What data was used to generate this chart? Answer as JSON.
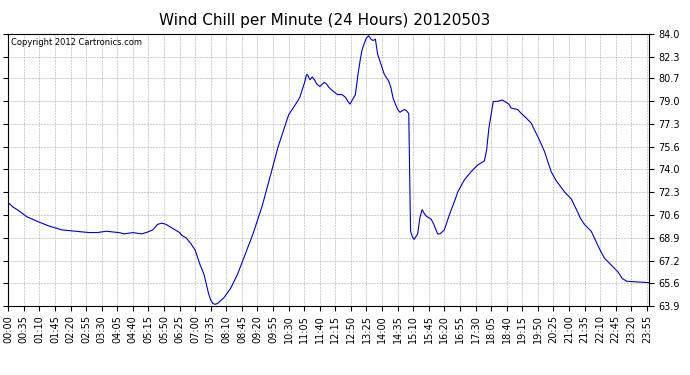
{
  "title": "Wind Chill per Minute (24 Hours) 20120503",
  "copyright_text": "Copyright 2012 Cartronics.com",
  "line_color": "#0000cc",
  "background_color": "#ffffff",
  "grid_color": "#aaaaaa",
  "ylim": [
    63.9,
    84.0
  ],
  "yticks": [
    63.9,
    65.6,
    67.2,
    68.9,
    70.6,
    72.3,
    74.0,
    75.6,
    77.3,
    79.0,
    80.7,
    82.3,
    84.0
  ],
  "title_fontsize": 11,
  "copyright_fontsize": 6,
  "tick_fontsize": 7,
  "x_tick_labels": [
    "00:00",
    "00:35",
    "01:10",
    "01:45",
    "02:20",
    "02:55",
    "03:30",
    "04:05",
    "04:40",
    "05:15",
    "05:50",
    "06:25",
    "07:00",
    "07:35",
    "08:10",
    "08:45",
    "09:20",
    "09:55",
    "10:30",
    "11:05",
    "11:40",
    "12:15",
    "12:50",
    "13:25",
    "14:00",
    "14:35",
    "15:10",
    "15:45",
    "16:20",
    "16:55",
    "17:30",
    "18:05",
    "18:40",
    "19:15",
    "19:50",
    "20:25",
    "21:00",
    "21:35",
    "22:10",
    "22:45",
    "23:20",
    "23:55"
  ],
  "key_points": [
    [
      0,
      71.5
    ],
    [
      10,
      71.2
    ],
    [
      20,
      71.0
    ],
    [
      40,
      70.5
    ],
    [
      60,
      70.2
    ],
    [
      90,
      69.8
    ],
    [
      120,
      69.5
    ],
    [
      150,
      69.4
    ],
    [
      180,
      69.3
    ],
    [
      200,
      69.3
    ],
    [
      220,
      69.4
    ],
    [
      250,
      69.3
    ],
    [
      260,
      69.2
    ],
    [
      280,
      69.3
    ],
    [
      300,
      69.2
    ],
    [
      310,
      69.3
    ],
    [
      325,
      69.5
    ],
    [
      335,
      69.9
    ],
    [
      345,
      70.0
    ],
    [
      355,
      69.9
    ],
    [
      365,
      69.7
    ],
    [
      375,
      69.5
    ],
    [
      385,
      69.3
    ],
    [
      390,
      69.1
    ],
    [
      400,
      68.9
    ],
    [
      410,
      68.5
    ],
    [
      420,
      68.0
    ],
    [
      430,
      67.0
    ],
    [
      440,
      66.2
    ],
    [
      445,
      65.5
    ],
    [
      450,
      64.8
    ],
    [
      455,
      64.3
    ],
    [
      460,
      64.05
    ],
    [
      465,
      64.0
    ],
    [
      470,
      64.05
    ],
    [
      485,
      64.5
    ],
    [
      500,
      65.2
    ],
    [
      515,
      66.2
    ],
    [
      530,
      67.5
    ],
    [
      550,
      69.2
    ],
    [
      570,
      71.2
    ],
    [
      585,
      73.0
    ],
    [
      605,
      75.5
    ],
    [
      630,
      78.0
    ],
    [
      650,
      79.0
    ],
    [
      655,
      79.3
    ],
    [
      660,
      79.8
    ],
    [
      665,
      80.3
    ],
    [
      668,
      80.7
    ],
    [
      670,
      80.95
    ],
    [
      672,
      81.0
    ],
    [
      675,
      80.8
    ],
    [
      678,
      80.6
    ],
    [
      683,
      80.8
    ],
    [
      688,
      80.6
    ],
    [
      693,
      80.3
    ],
    [
      700,
      80.1
    ],
    [
      710,
      80.4
    ],
    [
      715,
      80.3
    ],
    [
      720,
      80.05
    ],
    [
      728,
      79.8
    ],
    [
      740,
      79.5
    ],
    [
      750,
      79.5
    ],
    [
      758,
      79.3
    ],
    [
      763,
      79.0
    ],
    [
      768,
      78.8
    ],
    [
      780,
      79.5
    ],
    [
      785,
      80.8
    ],
    [
      790,
      81.9
    ],
    [
      795,
      82.8
    ],
    [
      800,
      83.3
    ],
    [
      805,
      83.7
    ],
    [
      810,
      83.85
    ],
    [
      815,
      83.6
    ],
    [
      820,
      83.5
    ],
    [
      825,
      83.6
    ],
    [
      830,
      82.5
    ],
    [
      835,
      82.0
    ],
    [
      840,
      81.5
    ],
    [
      845,
      81.0
    ],
    [
      855,
      80.5
    ],
    [
      860,
      80.0
    ],
    [
      865,
      79.2
    ],
    [
      870,
      78.8
    ],
    [
      875,
      78.4
    ],
    [
      880,
      78.2
    ],
    [
      885,
      78.3
    ],
    [
      890,
      78.4
    ],
    [
      895,
      78.3
    ],
    [
      900,
      78.1
    ],
    [
      904,
      69.4
    ],
    [
      908,
      69.0
    ],
    [
      912,
      68.8
    ],
    [
      916,
      69.0
    ],
    [
      920,
      69.2
    ],
    [
      925,
      70.4
    ],
    [
      930,
      71.0
    ],
    [
      935,
      70.7
    ],
    [
      940,
      70.5
    ],
    [
      950,
      70.3
    ],
    [
      955,
      70.0
    ],
    [
      960,
      69.6
    ],
    [
      965,
      69.2
    ],
    [
      970,
      69.2
    ],
    [
      980,
      69.5
    ],
    [
      985,
      70.0
    ],
    [
      990,
      70.5
    ],
    [
      1005,
      71.8
    ],
    [
      1010,
      72.3
    ],
    [
      1025,
      73.2
    ],
    [
      1040,
      73.8
    ],
    [
      1055,
      74.3
    ],
    [
      1070,
      74.6
    ],
    [
      1075,
      75.4
    ],
    [
      1080,
      77.0
    ],
    [
      1090,
      79.0
    ],
    [
      1100,
      79.0
    ],
    [
      1110,
      79.1
    ],
    [
      1115,
      79.0
    ],
    [
      1125,
      78.8
    ],
    [
      1130,
      78.5
    ],
    [
      1145,
      78.4
    ],
    [
      1150,
      78.2
    ],
    [
      1160,
      77.9
    ],
    [
      1175,
      77.4
    ],
    [
      1190,
      76.4
    ],
    [
      1205,
      75.3
    ],
    [
      1215,
      74.3
    ],
    [
      1220,
      73.8
    ],
    [
      1230,
      73.2
    ],
    [
      1250,
      72.3
    ],
    [
      1265,
      71.8
    ],
    [
      1280,
      70.8
    ],
    [
      1285,
      70.4
    ],
    [
      1295,
      69.9
    ],
    [
      1310,
      69.4
    ],
    [
      1320,
      68.7
    ],
    [
      1330,
      68.0
    ],
    [
      1340,
      67.4
    ],
    [
      1355,
      66.9
    ],
    [
      1370,
      66.4
    ],
    [
      1380,
      65.9
    ],
    [
      1390,
      65.7
    ],
    [
      1435,
      65.6
    ]
  ]
}
